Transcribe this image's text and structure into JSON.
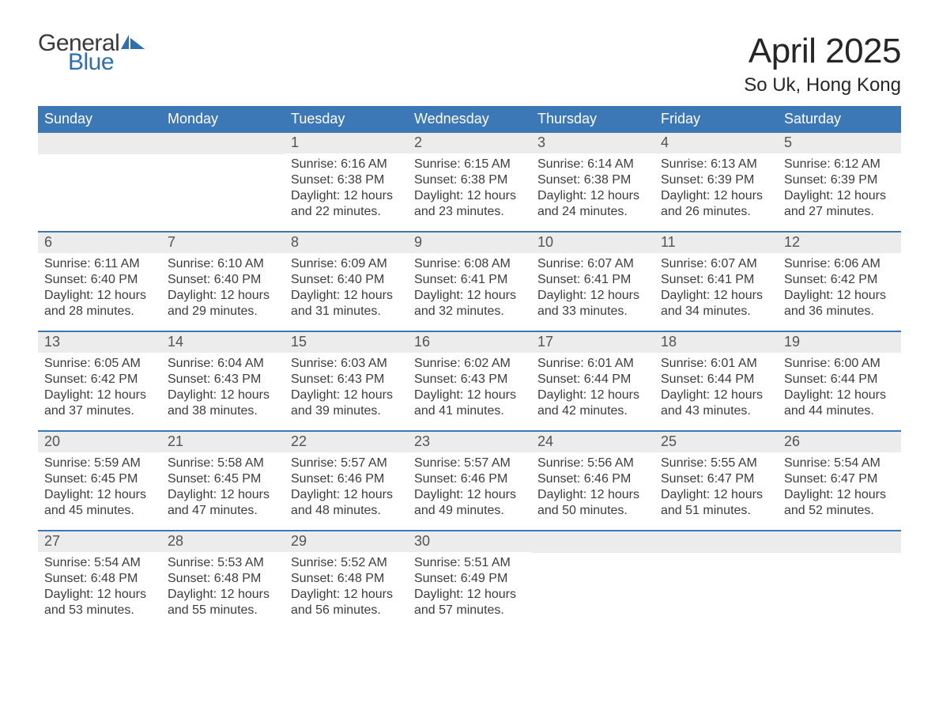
{
  "brand": {
    "word1": "General",
    "word2": "Blue",
    "flag_color": "#2f6fb0"
  },
  "title": "April 2025",
  "location": "So Uk, Hong Kong",
  "colors": {
    "header_bg": "#3d78b6",
    "header_text": "#ffffff",
    "daynum_bg": "#ececec",
    "daynum_text": "#535353",
    "body_text": "#3d3d3d",
    "week_border": "#3d78b6",
    "page_bg": "#ffffff"
  },
  "fonts": {
    "title_size_pt": 33,
    "location_size_pt": 18,
    "weekday_size_pt": 14,
    "daynum_size_pt": 14,
    "body_size_pt": 12
  },
  "weekdays": [
    "Sunday",
    "Monday",
    "Tuesday",
    "Wednesday",
    "Thursday",
    "Friday",
    "Saturday"
  ],
  "weeks": [
    [
      {
        "n": "",
        "sunrise": "",
        "sunset": "",
        "daylight": ""
      },
      {
        "n": "",
        "sunrise": "",
        "sunset": "",
        "daylight": ""
      },
      {
        "n": "1",
        "sunrise": "Sunrise: 6:16 AM",
        "sunset": "Sunset: 6:38 PM",
        "daylight": "Daylight: 12 hours and 22 minutes."
      },
      {
        "n": "2",
        "sunrise": "Sunrise: 6:15 AM",
        "sunset": "Sunset: 6:38 PM",
        "daylight": "Daylight: 12 hours and 23 minutes."
      },
      {
        "n": "3",
        "sunrise": "Sunrise: 6:14 AM",
        "sunset": "Sunset: 6:38 PM",
        "daylight": "Daylight: 12 hours and 24 minutes."
      },
      {
        "n": "4",
        "sunrise": "Sunrise: 6:13 AM",
        "sunset": "Sunset: 6:39 PM",
        "daylight": "Daylight: 12 hours and 26 minutes."
      },
      {
        "n": "5",
        "sunrise": "Sunrise: 6:12 AM",
        "sunset": "Sunset: 6:39 PM",
        "daylight": "Daylight: 12 hours and 27 minutes."
      }
    ],
    [
      {
        "n": "6",
        "sunrise": "Sunrise: 6:11 AM",
        "sunset": "Sunset: 6:40 PM",
        "daylight": "Daylight: 12 hours and 28 minutes."
      },
      {
        "n": "7",
        "sunrise": "Sunrise: 6:10 AM",
        "sunset": "Sunset: 6:40 PM",
        "daylight": "Daylight: 12 hours and 29 minutes."
      },
      {
        "n": "8",
        "sunrise": "Sunrise: 6:09 AM",
        "sunset": "Sunset: 6:40 PM",
        "daylight": "Daylight: 12 hours and 31 minutes."
      },
      {
        "n": "9",
        "sunrise": "Sunrise: 6:08 AM",
        "sunset": "Sunset: 6:41 PM",
        "daylight": "Daylight: 12 hours and 32 minutes."
      },
      {
        "n": "10",
        "sunrise": "Sunrise: 6:07 AM",
        "sunset": "Sunset: 6:41 PM",
        "daylight": "Daylight: 12 hours and 33 minutes."
      },
      {
        "n": "11",
        "sunrise": "Sunrise: 6:07 AM",
        "sunset": "Sunset: 6:41 PM",
        "daylight": "Daylight: 12 hours and 34 minutes."
      },
      {
        "n": "12",
        "sunrise": "Sunrise: 6:06 AM",
        "sunset": "Sunset: 6:42 PM",
        "daylight": "Daylight: 12 hours and 36 minutes."
      }
    ],
    [
      {
        "n": "13",
        "sunrise": "Sunrise: 6:05 AM",
        "sunset": "Sunset: 6:42 PM",
        "daylight": "Daylight: 12 hours and 37 minutes."
      },
      {
        "n": "14",
        "sunrise": "Sunrise: 6:04 AM",
        "sunset": "Sunset: 6:43 PM",
        "daylight": "Daylight: 12 hours and 38 minutes."
      },
      {
        "n": "15",
        "sunrise": "Sunrise: 6:03 AM",
        "sunset": "Sunset: 6:43 PM",
        "daylight": "Daylight: 12 hours and 39 minutes."
      },
      {
        "n": "16",
        "sunrise": "Sunrise: 6:02 AM",
        "sunset": "Sunset: 6:43 PM",
        "daylight": "Daylight: 12 hours and 41 minutes."
      },
      {
        "n": "17",
        "sunrise": "Sunrise: 6:01 AM",
        "sunset": "Sunset: 6:44 PM",
        "daylight": "Daylight: 12 hours and 42 minutes."
      },
      {
        "n": "18",
        "sunrise": "Sunrise: 6:01 AM",
        "sunset": "Sunset: 6:44 PM",
        "daylight": "Daylight: 12 hours and 43 minutes."
      },
      {
        "n": "19",
        "sunrise": "Sunrise: 6:00 AM",
        "sunset": "Sunset: 6:44 PM",
        "daylight": "Daylight: 12 hours and 44 minutes."
      }
    ],
    [
      {
        "n": "20",
        "sunrise": "Sunrise: 5:59 AM",
        "sunset": "Sunset: 6:45 PM",
        "daylight": "Daylight: 12 hours and 45 minutes."
      },
      {
        "n": "21",
        "sunrise": "Sunrise: 5:58 AM",
        "sunset": "Sunset: 6:45 PM",
        "daylight": "Daylight: 12 hours and 47 minutes."
      },
      {
        "n": "22",
        "sunrise": "Sunrise: 5:57 AM",
        "sunset": "Sunset: 6:46 PM",
        "daylight": "Daylight: 12 hours and 48 minutes."
      },
      {
        "n": "23",
        "sunrise": "Sunrise: 5:57 AM",
        "sunset": "Sunset: 6:46 PM",
        "daylight": "Daylight: 12 hours and 49 minutes."
      },
      {
        "n": "24",
        "sunrise": "Sunrise: 5:56 AM",
        "sunset": "Sunset: 6:46 PM",
        "daylight": "Daylight: 12 hours and 50 minutes."
      },
      {
        "n": "25",
        "sunrise": "Sunrise: 5:55 AM",
        "sunset": "Sunset: 6:47 PM",
        "daylight": "Daylight: 12 hours and 51 minutes."
      },
      {
        "n": "26",
        "sunrise": "Sunrise: 5:54 AM",
        "sunset": "Sunset: 6:47 PM",
        "daylight": "Daylight: 12 hours and 52 minutes."
      }
    ],
    [
      {
        "n": "27",
        "sunrise": "Sunrise: 5:54 AM",
        "sunset": "Sunset: 6:48 PM",
        "daylight": "Daylight: 12 hours and 53 minutes."
      },
      {
        "n": "28",
        "sunrise": "Sunrise: 5:53 AM",
        "sunset": "Sunset: 6:48 PM",
        "daylight": "Daylight: 12 hours and 55 minutes."
      },
      {
        "n": "29",
        "sunrise": "Sunrise: 5:52 AM",
        "sunset": "Sunset: 6:48 PM",
        "daylight": "Daylight: 12 hours and 56 minutes."
      },
      {
        "n": "30",
        "sunrise": "Sunrise: 5:51 AM",
        "sunset": "Sunset: 6:49 PM",
        "daylight": "Daylight: 12 hours and 57 minutes."
      },
      {
        "n": "",
        "sunrise": "",
        "sunset": "",
        "daylight": ""
      },
      {
        "n": "",
        "sunrise": "",
        "sunset": "",
        "daylight": ""
      },
      {
        "n": "",
        "sunrise": "",
        "sunset": "",
        "daylight": ""
      }
    ]
  ]
}
